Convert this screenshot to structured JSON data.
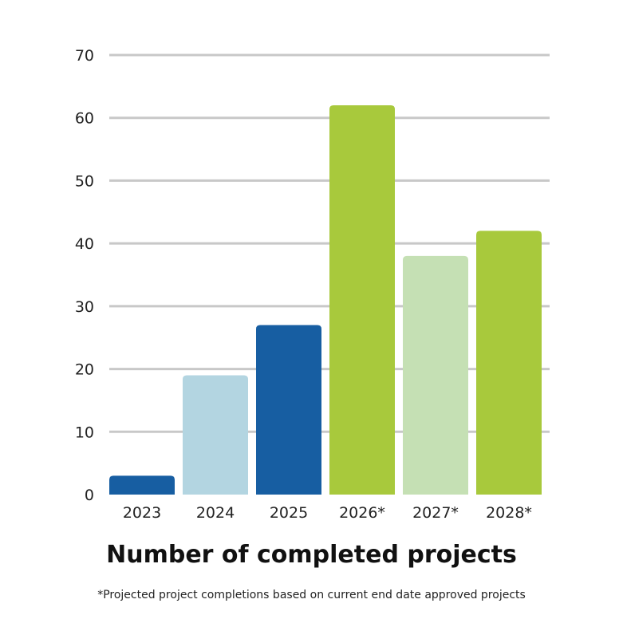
{
  "chart_data": {
    "type": "bar",
    "title": "Number of completed projects",
    "footnote": "*Projected project completions based on current end date approved projects",
    "categories": [
      "2023",
      "2024",
      "2025",
      "2026*",
      "2027*",
      "2028*"
    ],
    "values": [
      3,
      19,
      27,
      62,
      38,
      42
    ],
    "bar_colors": [
      "#175ea2",
      "#b3d5e1",
      "#175ea2",
      "#a8c93c",
      "#c5e0b4",
      "#a8c93c"
    ],
    "ylim": [
      0,
      70
    ],
    "y_ticks": [
      "0",
      "10",
      "20",
      "30",
      "40",
      "50",
      "60",
      "70"
    ],
    "grid": true,
    "grid_color": "#c8c8c8",
    "xlabel": "",
    "ylabel": ""
  }
}
